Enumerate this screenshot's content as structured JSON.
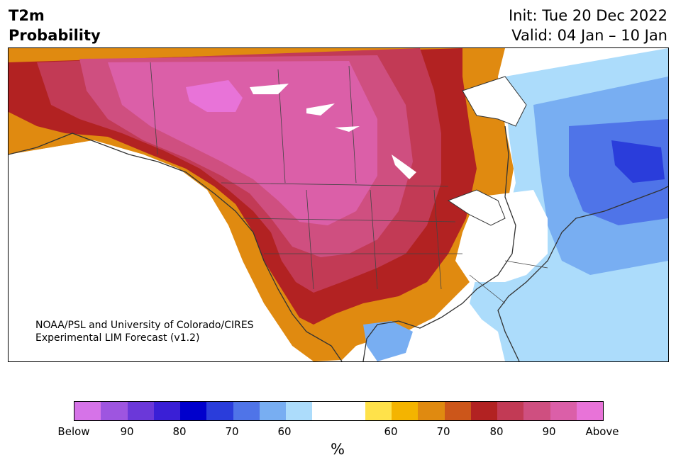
{
  "title": {
    "line1": "T2m",
    "line2": "Probability"
  },
  "init": "Init: Tue 20 Dec 2022",
  "valid": "Valid: 04 Jan – 10 Jan",
  "credit": {
    "line1": "NOAA/PSL and University of Colorado/CIRES",
    "line2": "Experimental LIM Forecast (v1.2)"
  },
  "colorbar": {
    "unit": "%",
    "colors": [
      "#d673e8",
      "#9e55e0",
      "#6b38d9",
      "#3a1fd6",
      "#0000cc",
      "#2a3ddb",
      "#4f74e8",
      "#78aef2",
      "#acdcfb",
      "#ffffff",
      "#ffffff",
      "#ffe24a",
      "#f4b400",
      "#e08a10",
      "#cc561a",
      "#b22222",
      "#c23a55",
      "#cf4f80",
      "#db5fa8",
      "#e873d8"
    ],
    "ticks": [
      "Below",
      "90",
      "80",
      "70",
      "60",
      "60",
      "70",
      "80",
      "90",
      "Above"
    ]
  },
  "map": {
    "colors": {
      "land_white": "#ffffff",
      "coast": "#333333",
      "above_100": "#e873d8",
      "above_90": "#db5fa8",
      "above_85": "#cf4f80",
      "above_80": "#c23a55",
      "above_75": "#b22222",
      "above_70": "#cc561a",
      "above_65": "#e08a10",
      "above_60": "#f4b400",
      "above_55": "#ffe24a",
      "below_55": "#acdcfb",
      "below_60": "#78aef2",
      "below_65": "#4f74e8",
      "below_70": "#2a3ddb"
    }
  }
}
